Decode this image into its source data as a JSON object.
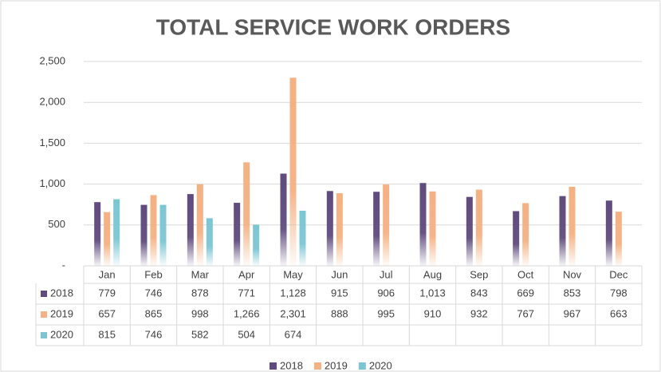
{
  "chart_data": {
    "type": "bar",
    "title": "TOTAL SERVICE WORK ORDERS",
    "categories": [
      "Jan",
      "Feb",
      "Mar",
      "Apr",
      "May",
      "Jun",
      "Jul",
      "Aug",
      "Sep",
      "Oct",
      "Nov",
      "Dec"
    ],
    "series": [
      {
        "name": "2018",
        "color": "#5f4b7d",
        "values": [
          779,
          746,
          878,
          771,
          1128,
          915,
          906,
          1013,
          843,
          669,
          853,
          798
        ],
        "value_labels": [
          "779",
          "746",
          "878",
          "771",
          "1,128",
          "915",
          "906",
          "1,013",
          "843",
          "669",
          "853",
          "798"
        ]
      },
      {
        "name": "2019",
        "color": "#f4b183",
        "values": [
          657,
          865,
          998,
          1266,
          2301,
          888,
          995,
          910,
          932,
          767,
          967,
          663
        ],
        "value_labels": [
          "657",
          "865",
          "998",
          "1,266",
          "2,301",
          "888",
          "995",
          "910",
          "932",
          "767",
          "967",
          "663"
        ]
      },
      {
        "name": "2020",
        "color": "#7cc6d4",
        "values": [
          815,
          746,
          582,
          504,
          674,
          null,
          null,
          null,
          null,
          null,
          null,
          null
        ],
        "value_labels": [
          "815",
          "746",
          "582",
          "504",
          "674",
          null,
          null,
          null,
          null,
          null,
          null,
          null
        ]
      }
    ],
    "ylim": [
      0,
      2500
    ],
    "yticks": [
      {
        "value": 0,
        "label": "-"
      },
      500,
      {
        "value": 1000,
        "label": "1,000"
      },
      {
        "value": 1500,
        "label": "1,500"
      },
      {
        "value": 2000,
        "label": "2,000"
      },
      {
        "value": 2500,
        "label": "2,500"
      }
    ],
    "grid": true,
    "legend": "bottom"
  }
}
